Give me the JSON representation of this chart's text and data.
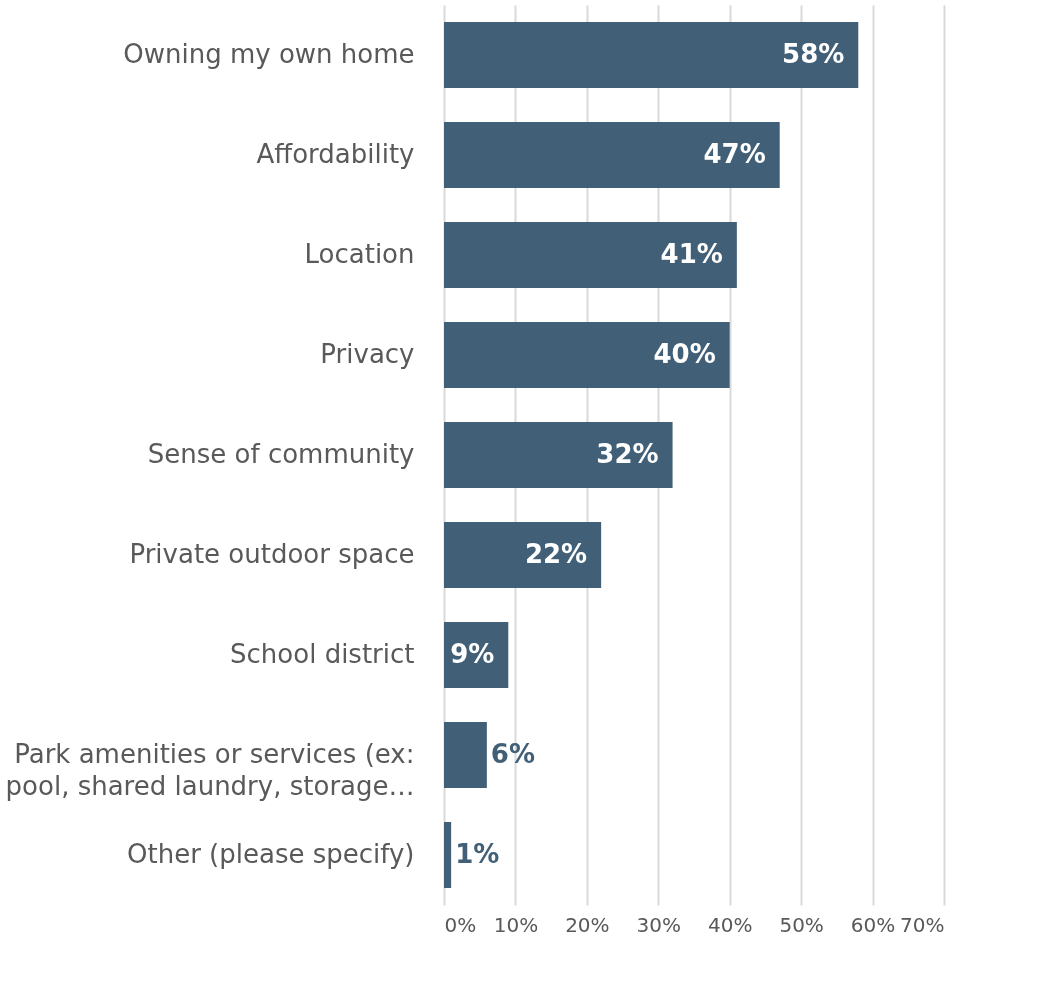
{
  "chart_data": {
    "type": "bar",
    "orientation": "horizontal",
    "categories": [
      "Owning my own home",
      "Affordability",
      "Location",
      "Privacy",
      "Sense of community",
      "Private outdoor space",
      "School district",
      "Park amenities or services (ex: pool, shared laundry, storage…",
      "Other (please specify)"
    ],
    "values": [
      58,
      47,
      41,
      40,
      32,
      22,
      9,
      6,
      1
    ],
    "value_labels": [
      "58%",
      "47%",
      "41%",
      "40%",
      "32%",
      "22%",
      "9%",
      "6%",
      "1%"
    ],
    "color": "#416077",
    "xlim": [
      0,
      70
    ],
    "xticks": [
      {
        "value": 0,
        "label": "0%"
      },
      {
        "value": 10,
        "label": "10%"
      },
      {
        "value": 20,
        "label": "20%"
      },
      {
        "value": 30,
        "label": "30%"
      },
      {
        "value": 40,
        "label": "40%"
      },
      {
        "value": 50,
        "label": "50%"
      },
      {
        "value": 60,
        "label": "60%"
      },
      {
        "value": 70,
        "label": "70%"
      }
    ],
    "grid": "x"
  }
}
